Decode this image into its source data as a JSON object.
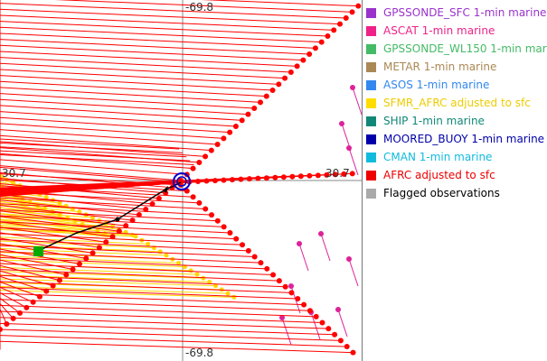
{
  "map": {
    "labels": {
      "lon_top": "-69.8",
      "lon_bottom": "-69.8",
      "lat_left": "30.7",
      "lat_right": "30.7"
    },
    "colors": {
      "afrc": "#ff0000",
      "sfmr": "#ffd700",
      "gps_wl150": "#dd2299",
      "center_ring": "#0000cc",
      "track": "#000000",
      "station": "#00aa00",
      "grid": "#888888"
    },
    "center_marker": "storm-center-icon",
    "station_marker": "station-square-icon"
  },
  "legend": {
    "items": [
      {
        "label": "GPSSONDE_SFC 1-min marine",
        "color": "#9933cc",
        "text_color": "#9933cc"
      },
      {
        "label": "ASCAT 1-min marine",
        "color": "#ee2288",
        "text_color": "#ee2288"
      },
      {
        "label": "GPSSONDE_WL150 1-min mar",
        "color": "#44bb66",
        "text_color": "#44bb66"
      },
      {
        "label": "METAR 1-min marine",
        "color": "#aa8855",
        "text_color": "#aa8855"
      },
      {
        "label": "ASOS 1-min marine",
        "color": "#3388ee",
        "text_color": "#3388ee"
      },
      {
        "label": "SFMR_AFRC adjusted to sfc",
        "color": "#ffdd00",
        "text_color": "#eecc00"
      },
      {
        "label": "SHIP 1-min marine",
        "color": "#118877",
        "text_color": "#118877"
      },
      {
        "label": "MOORED_BUOY 1-min marine",
        "color": "#0000aa",
        "text_color": "#0000aa"
      },
      {
        "label": "CMAN 1-min marine",
        "color": "#11bbdd",
        "text_color": "#11bbdd"
      },
      {
        "label": "AFRC adjusted to sfc",
        "color": "#ee0000",
        "text_color": "#ee0000"
      },
      {
        "label": "Flagged observations",
        "color": "#aaaaaa",
        "text_color": "#000000"
      }
    ]
  }
}
